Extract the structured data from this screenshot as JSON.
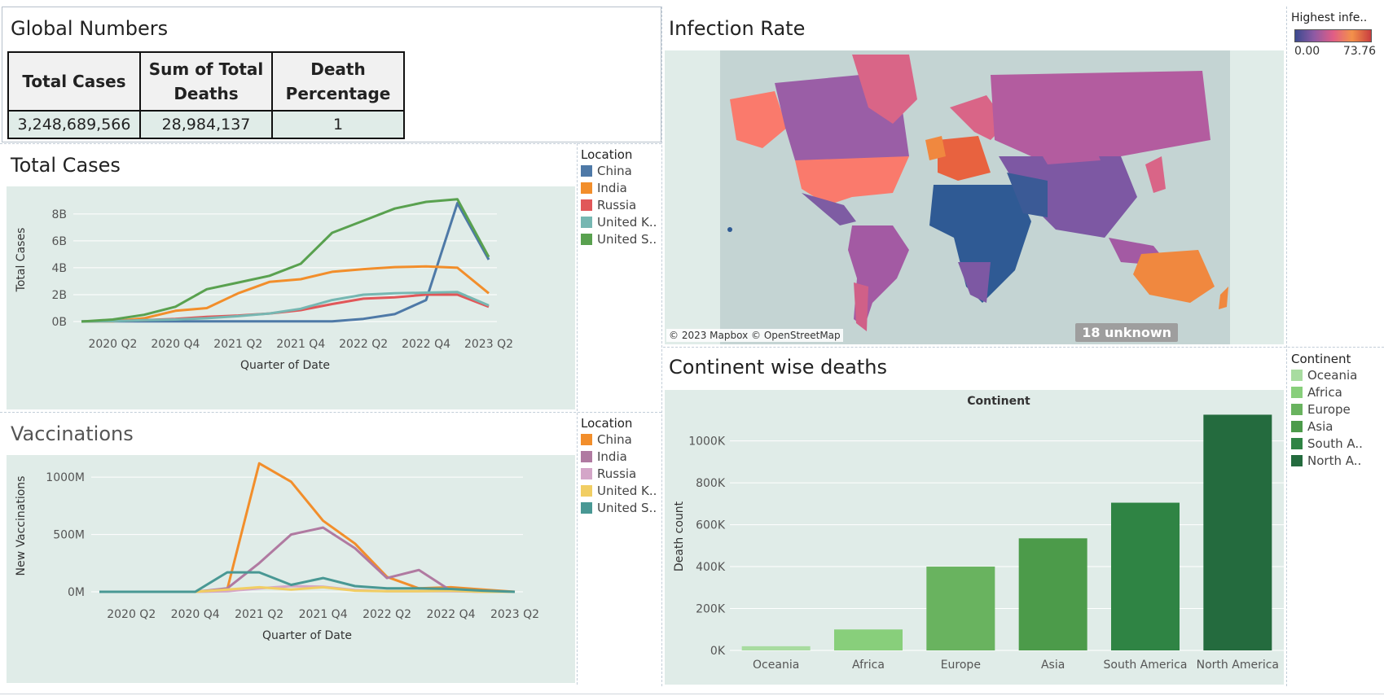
{
  "global": {
    "title": "Global Numbers",
    "headers": [
      "Total Cases",
      "Sum of Total Deaths",
      "Death Percentage"
    ],
    "values": [
      "3,248,689,566",
      "28,984,137",
      "1"
    ]
  },
  "infection_map": {
    "title": "Infection Rate",
    "legend_title": "Highest infe..",
    "legend_min": "0.00",
    "legend_max": "73.76",
    "attribution": "© 2023 Mapbox © OpenStreetMap",
    "unknown": "18 unknown",
    "colors": {
      "ocean": "#c9d8d6",
      "land_low": "#2e5b94",
      "land_mid": "#a35aa3",
      "land_high": "#e8623f"
    }
  },
  "total_cases": {
    "title": "Total Cases",
    "legend_title": "Location",
    "legend": [
      {
        "label": "China",
        "color": "#4e79a7"
      },
      {
        "label": "India",
        "color": "#f28e2b"
      },
      {
        "label": "Russia",
        "color": "#e15759"
      },
      {
        "label": "United K..",
        "color": "#76b7b2"
      },
      {
        "label": "United S..",
        "color": "#59a14f"
      }
    ]
  },
  "vaccinations": {
    "title": "Vaccinations",
    "legend_title": "Location",
    "legend": [
      {
        "label": "China",
        "color": "#f28e2b"
      },
      {
        "label": "India",
        "color": "#b07aa1"
      },
      {
        "label": "Russia",
        "color": "#d4a6c8"
      },
      {
        "label": "United K..",
        "color": "#f1ce63"
      },
      {
        "label": "United S..",
        "color": "#499894"
      }
    ]
  },
  "continent_deaths": {
    "title": "Continent wise deaths",
    "header": "Continent",
    "legend_title": "Continent",
    "legend": [
      {
        "label": "Oceania",
        "color": "#a8dca0"
      },
      {
        "label": "Africa",
        "color": "#88cf7b"
      },
      {
        "label": "Europe",
        "color": "#69b35f"
      },
      {
        "label": "Asia",
        "color": "#4c9b4a"
      },
      {
        "label": "South A..",
        "color": "#2f8444"
      },
      {
        "label": "North A..",
        "color": "#246b3e"
      }
    ]
  },
  "chart_data": [
    {
      "type": "line",
      "title": "Total Cases",
      "xlabel": "Quarter of Date",
      "ylabel": "Total Cases",
      "x": [
        "2020 Q1",
        "2020 Q2",
        "2020 Q3",
        "2020 Q4",
        "2021 Q1",
        "2021 Q2",
        "2021 Q3",
        "2021 Q4",
        "2022 Q1",
        "2022 Q2",
        "2022 Q3",
        "2022 Q4",
        "2023 Q1",
        "2023 Q2"
      ],
      "xticks": [
        "2020 Q2",
        "2020 Q4",
        "2021 Q2",
        "2021 Q4",
        "2022 Q2",
        "2022 Q4",
        "2023 Q2"
      ],
      "yticks": [
        "0B",
        "2B",
        "4B",
        "6B",
        "8B"
      ],
      "ylim": [
        0,
        9.2
      ],
      "series": [
        {
          "name": "China",
          "color": "#4e79a7",
          "values": [
            0.02,
            0.01,
            0.01,
            0.01,
            0.01,
            0.01,
            0.01,
            0.01,
            0.02,
            0.2,
            0.55,
            1.6,
            8.8,
            4.6
          ]
        },
        {
          "name": "India",
          "color": "#f28e2b",
          "values": [
            0.0,
            0.02,
            0.25,
            0.8,
            1.0,
            2.1,
            2.95,
            3.15,
            3.7,
            3.9,
            4.05,
            4.1,
            4.0,
            2.1
          ]
        },
        {
          "name": "Russia",
          "color": "#e15759",
          "values": [
            0.0,
            0.05,
            0.1,
            0.2,
            0.35,
            0.45,
            0.6,
            0.85,
            1.3,
            1.7,
            1.8,
            2.0,
            2.0,
            1.1
          ]
        },
        {
          "name": "United K..",
          "color": "#76b7b2",
          "values": [
            0.0,
            0.03,
            0.1,
            0.15,
            0.25,
            0.4,
            0.6,
            0.95,
            1.6,
            2.0,
            2.1,
            2.15,
            2.2,
            1.2
          ]
        },
        {
          "name": "United S..",
          "color": "#59a14f",
          "values": [
            0.0,
            0.15,
            0.5,
            1.1,
            2.4,
            2.9,
            3.4,
            4.3,
            6.6,
            7.5,
            8.4,
            8.9,
            9.1,
            4.8
          ]
        }
      ]
    },
    {
      "type": "line",
      "title": "Vaccinations",
      "xlabel": "Quarter of Date",
      "ylabel": "New Vaccinations",
      "x": [
        "2020 Q1",
        "2020 Q2",
        "2020 Q3",
        "2020 Q4",
        "2021 Q1",
        "2021 Q2",
        "2021 Q3",
        "2021 Q4",
        "2022 Q1",
        "2022 Q2",
        "2022 Q3",
        "2022 Q4",
        "2023 Q1",
        "2023 Q2"
      ],
      "xticks": [
        "2020 Q2",
        "2020 Q4",
        "2021 Q2",
        "2021 Q4",
        "2022 Q2",
        "2022 Q4",
        "2023 Q2"
      ],
      "yticks": [
        "0M",
        "500M",
        "1000M"
      ],
      "ylim": [
        0,
        1150
      ],
      "series": [
        {
          "name": "China",
          "color": "#f28e2b",
          "values": [
            0,
            0,
            0,
            0,
            20,
            1120,
            960,
            620,
            420,
            130,
            30,
            40,
            20,
            0
          ]
        },
        {
          "name": "India",
          "color": "#b07aa1",
          "values": [
            0,
            0,
            0,
            0,
            30,
            250,
            500,
            560,
            380,
            120,
            190,
            10,
            0,
            0
          ]
        },
        {
          "name": "Russia",
          "color": "#d4a6c8",
          "values": [
            0,
            0,
            0,
            0,
            5,
            30,
            50,
            45,
            15,
            5,
            5,
            5,
            0,
            0
          ]
        },
        {
          "name": "United K..",
          "color": "#f1ce63",
          "values": [
            0,
            0,
            0,
            0,
            20,
            40,
            20,
            40,
            10,
            5,
            5,
            10,
            0,
            0
          ]
        },
        {
          "name": "United S..",
          "color": "#499894",
          "values": [
            0,
            0,
            0,
            0,
            170,
            170,
            60,
            120,
            50,
            30,
            30,
            25,
            10,
            0
          ]
        }
      ]
    },
    {
      "type": "bar",
      "title": "Continent wise deaths",
      "xlabel": "Continent",
      "ylabel": "Death count",
      "categories": [
        "Oceania",
        "Africa",
        "Europe",
        "Asia",
        "South America",
        "North America"
      ],
      "values": [
        20000,
        100000,
        400000,
        535000,
        705000,
        1125000
      ],
      "colors": [
        "#a8dca0",
        "#88cf7b",
        "#69b35f",
        "#4c9b4a",
        "#2f8444",
        "#246b3e"
      ],
      "yticks": [
        "0K",
        "200K",
        "400K",
        "600K",
        "800K",
        "1000K"
      ],
      "ylim": [
        0,
        1150000
      ]
    }
  ]
}
